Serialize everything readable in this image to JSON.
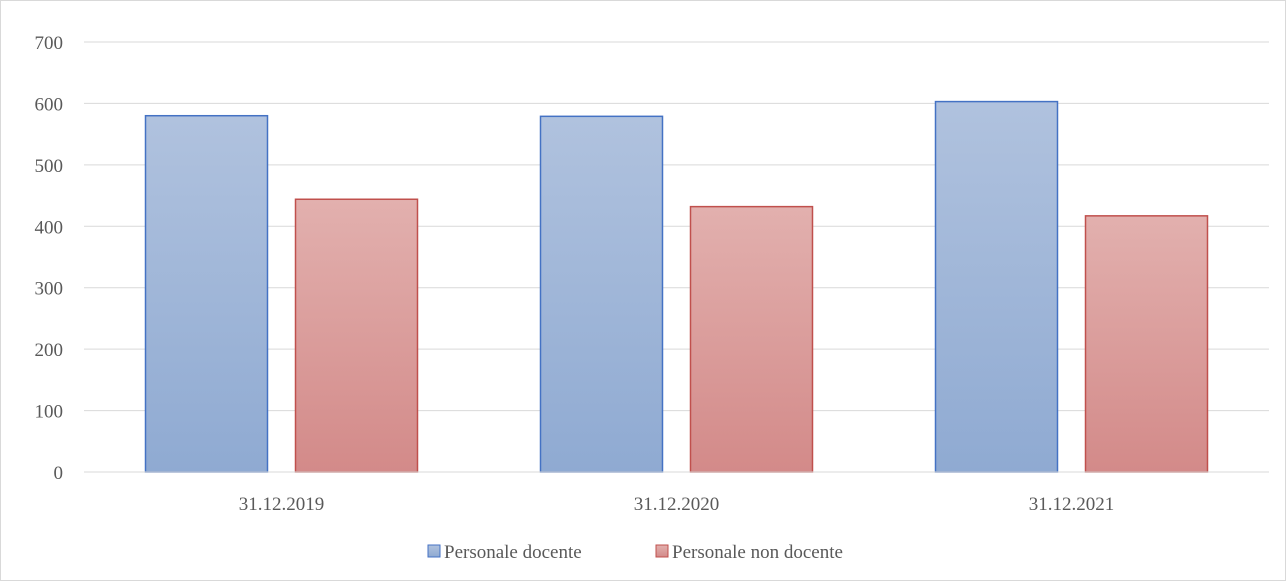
{
  "chart_data": {
    "type": "bar",
    "title": "",
    "xlabel": "",
    "ylabel": "",
    "categories": [
      "31.12.2019",
      "31.12.2020",
      "31.12.2021"
    ],
    "series": [
      {
        "name": "Personale docente",
        "values": [
          580,
          579,
          603
        ],
        "color": "#8faad2",
        "color_top": "#b0c2de",
        "border": "#4472c4"
      },
      {
        "name": "Personale non docente",
        "values": [
          444,
          432,
          417
        ],
        "color": "#d38a89",
        "color_top": "#e2b0ae",
        "border": "#c0504d"
      }
    ],
    "ylim": [
      0,
      700
    ],
    "yticks": [
      0,
      100,
      200,
      300,
      400,
      500,
      600,
      700
    ],
    "grid": true,
    "legend_position": "bottom"
  }
}
